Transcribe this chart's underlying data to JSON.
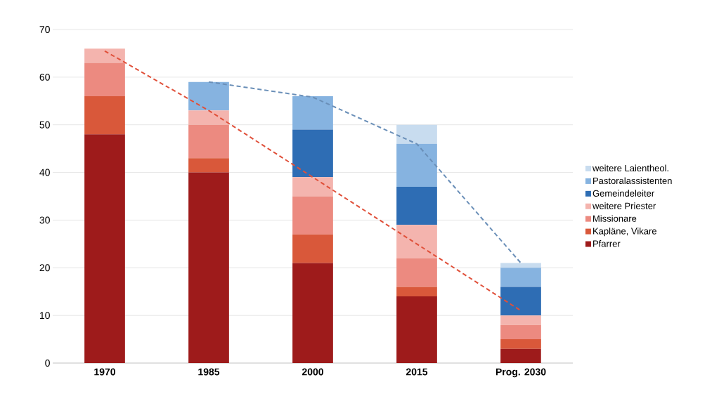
{
  "chart_data": {
    "type": "bar",
    "stacked": true,
    "categories": [
      "1970",
      "1985",
      "2000",
      "2015",
      "Prog. 2030"
    ],
    "series": [
      {
        "name": "Pfarrer",
        "color": "#9e1b1b",
        "values": [
          48,
          40,
          21,
          14,
          3
        ]
      },
      {
        "name": "Kapläne, Vikare",
        "color": "#d9583a",
        "values": [
          8,
          3,
          6,
          2,
          2
        ]
      },
      {
        "name": "Missionare",
        "color": "#ec8a80",
        "values": [
          7,
          7,
          8,
          6,
          3
        ]
      },
      {
        "name": "weitere Priester",
        "color": "#f4b4ae",
        "values": [
          3,
          3,
          4,
          7,
          2
        ]
      },
      {
        "name": "Gemeindeleiter",
        "color": "#2e6db4",
        "values": [
          0,
          0,
          10,
          8,
          6
        ]
      },
      {
        "name": "Pastoralassistenten",
        "color": "#86b3e0",
        "values": [
          0,
          6,
          7,
          9,
          4
        ]
      },
      {
        "name": "weitere Laientheol.",
        "color": "#c8dcef",
        "values": [
          0,
          0,
          0,
          4,
          1
        ]
      },
      {
        "type": "line",
        "color": "#e0503a",
        "line_style": "dashed",
        "values": [
          65.5,
          53,
          39,
          25,
          11
        ]
      },
      {
        "type": "line",
        "color": "#6a8fb8",
        "line_style": "dashed",
        "values": [
          null,
          59,
          55.8,
          46,
          21
        ]
      }
    ],
    "ylim": [
      0,
      70
    ],
    "yticks": [
      0,
      10,
      20,
      30,
      40,
      50,
      60,
      70
    ],
    "grid": "y",
    "legend": "right"
  }
}
